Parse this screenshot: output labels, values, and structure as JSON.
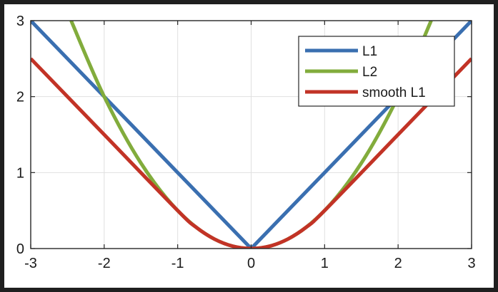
{
  "chart_data": {
    "type": "line",
    "title": "",
    "xlabel": "",
    "ylabel": "",
    "xlim": [
      -3,
      3
    ],
    "ylim": [
      0,
      3
    ],
    "xticks": [
      -3,
      -2,
      -1,
      0,
      1,
      2,
      3
    ],
    "yticks": [
      0,
      1,
      2,
      3
    ],
    "grid": true,
    "legend": "top-right",
    "colors": {
      "figure_background": "#1f1f1f",
      "plot_background": "#ffffff",
      "grid": "#e0e0e0",
      "axes": "#262626"
    },
    "series": [
      {
        "name": "L1",
        "color": "#3a6fb0",
        "x": [
          -3,
          -2,
          -1,
          0,
          1,
          2,
          3
        ],
        "y": [
          3,
          2,
          1,
          0,
          1,
          2,
          3
        ]
      },
      {
        "name": "L2",
        "color": "#82ac3c",
        "x": [
          -2.45,
          -2,
          -1.5,
          -1,
          -0.5,
          0,
          0.5,
          1,
          1.5,
          2,
          2.45
        ],
        "y": [
          3.0,
          2.0,
          1.125,
          0.5,
          0.125,
          0,
          0.125,
          0.5,
          1.125,
          2.0,
          3.0
        ]
      },
      {
        "name": "smooth L1",
        "color": "#c23326",
        "x": [
          -3,
          -2,
          -1,
          -0.75,
          -0.5,
          -0.25,
          0,
          0.25,
          0.5,
          0.75,
          1,
          2,
          3
        ],
        "y": [
          2.5,
          1.5,
          0.5,
          0.281,
          0.125,
          0.031,
          0,
          0.031,
          0.125,
          0.281,
          0.5,
          1.5,
          2.5
        ]
      }
    ]
  }
}
